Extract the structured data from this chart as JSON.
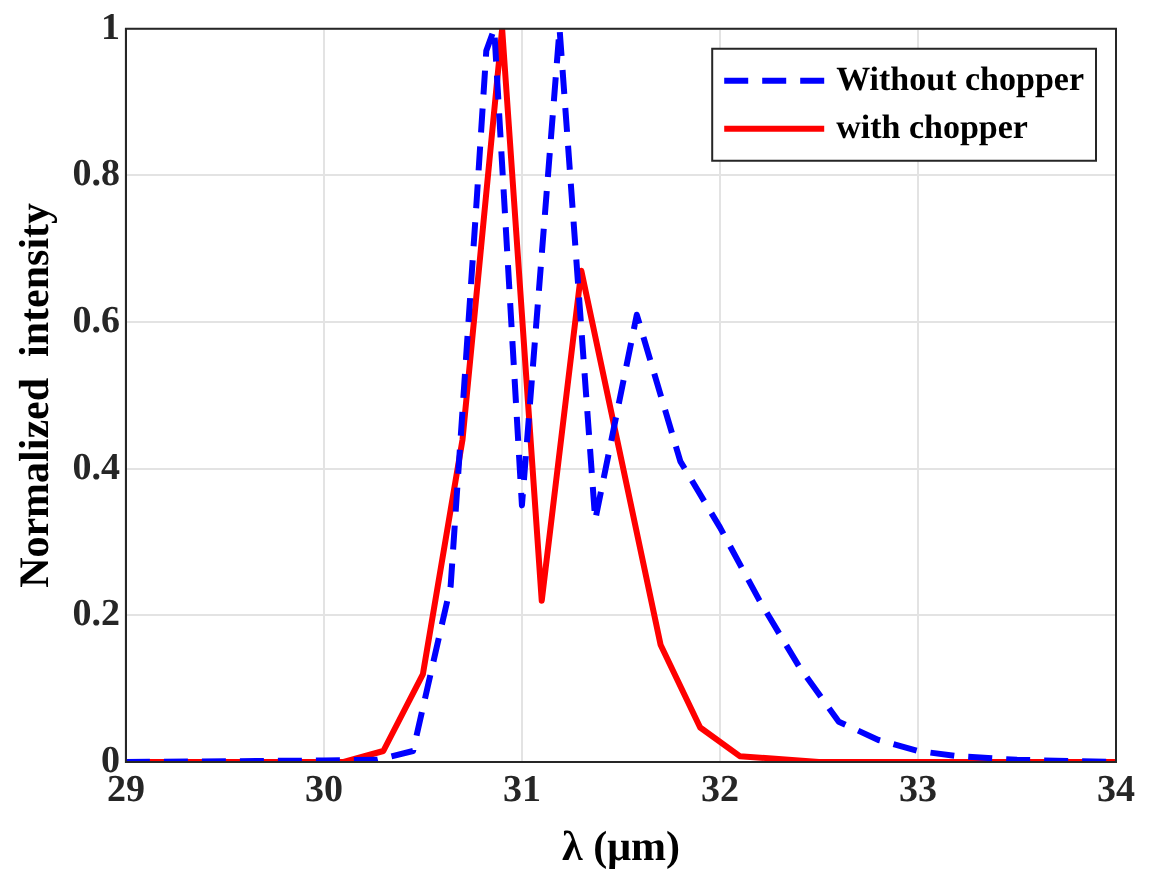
{
  "chart_data": {
    "type": "line",
    "xlabel": "λ (μm)",
    "ylabel": "Normalized  intensity",
    "xlim": [
      29,
      34
    ],
    "xticks": [
      29,
      30,
      31,
      32,
      33,
      34
    ],
    "ylim": [
      0,
      1
    ],
    "yticks": [
      0,
      0.2,
      0.4,
      0.6,
      0.8,
      1
    ],
    "grid": true,
    "legend": "top right",
    "marker": "none",
    "series": [
      {
        "name": "Without chopper",
        "color": "#0000ff",
        "line_style": "dashed",
        "x": [
          29,
          30,
          30.27,
          30.45,
          30.64,
          30.77,
          30.82,
          30.86,
          31.0,
          31.19,
          31.37,
          31.58,
          31.8,
          32.0,
          32.2,
          32.4,
          32.6,
          32.8,
          33.0,
          33.2,
          33.5,
          34
        ],
        "values": [
          0,
          0.002,
          0.003,
          0.015,
          0.24,
          0.76,
          0.97,
          1.0,
          0.35,
          1.0,
          0.33,
          0.61,
          0.41,
          0.32,
          0.22,
          0.13,
          0.055,
          0.03,
          0.015,
          0.008,
          0.003,
          0
        ]
      },
      {
        "name": "with chopper",
        "color": "#ff0000",
        "line_style": "solid",
        "x": [
          29,
          30.1,
          30.3,
          30.5,
          30.7,
          30.9,
          31.1,
          31.3,
          31.7,
          31.9,
          32.1,
          32.5,
          34
        ],
        "values": [
          0,
          0,
          0.015,
          0.12,
          0.44,
          1.0,
          0.22,
          0.67,
          0.16,
          0.047,
          0.008,
          0,
          0
        ]
      }
    ]
  }
}
